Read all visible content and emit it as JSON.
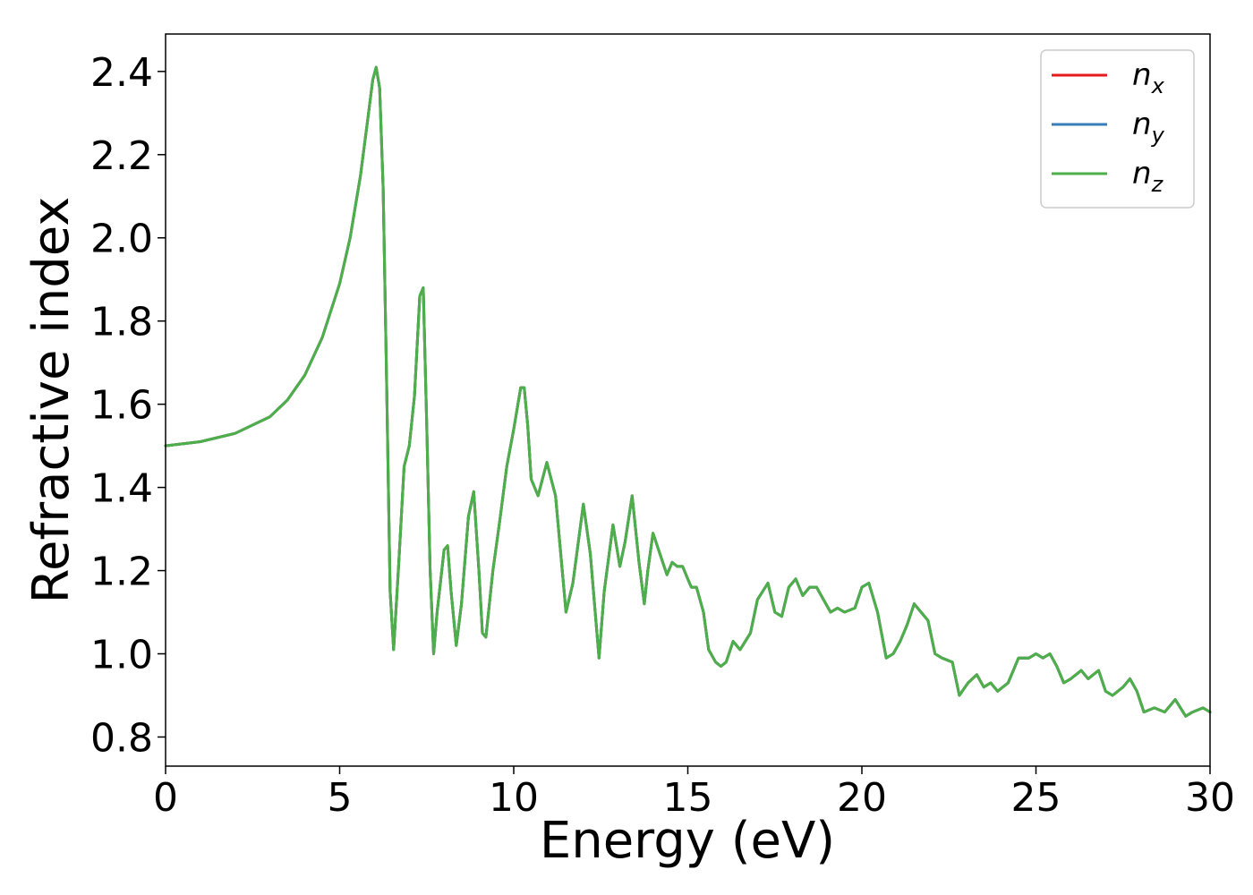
{
  "chart_data": {
    "type": "line",
    "title": "",
    "xlabel": "Energy (eV)",
    "ylabel": "Refractive index",
    "xlim": [
      0,
      30
    ],
    "ylim": [
      0.73,
      2.49
    ],
    "xticks": [
      0,
      5,
      10,
      15,
      20,
      25,
      30
    ],
    "xtick_labels": [
      "0",
      "5",
      "10",
      "15",
      "20",
      "25",
      "30"
    ],
    "yticks": [
      0.8,
      1.0,
      1.2,
      1.4,
      1.6,
      1.8,
      2.0,
      2.2,
      2.4
    ],
    "ytick_labels": [
      "0.8",
      "1.0",
      "1.2",
      "1.4",
      "1.6",
      "1.8",
      "2.0",
      "2.2",
      "2.4"
    ],
    "grid": false,
    "legend_position": "top-right",
    "x": [
      0,
      1,
      2,
      3,
      3.5,
      4,
      4.5,
      5,
      5.3,
      5.6,
      5.8,
      5.95,
      6.05,
      6.15,
      6.25,
      6.35,
      6.45,
      6.55,
      6.7,
      6.85,
      7.0,
      7.15,
      7.3,
      7.4,
      7.5,
      7.6,
      7.7,
      7.8,
      8.0,
      8.1,
      8.2,
      8.35,
      8.5,
      8.7,
      8.85,
      9.0,
      9.1,
      9.2,
      9.4,
      9.6,
      9.8,
      10.0,
      10.2,
      10.3,
      10.4,
      10.5,
      10.7,
      10.95,
      11.2,
      11.5,
      11.7,
      12.0,
      12.2,
      12.45,
      12.6,
      12.85,
      13.05,
      13.2,
      13.4,
      13.6,
      13.75,
      13.85,
      14.0,
      14.2,
      14.4,
      14.55,
      14.7,
      14.85,
      15.0,
      15.1,
      15.25,
      15.45,
      15.6,
      15.8,
      15.95,
      16.1,
      16.3,
      16.5,
      16.8,
      17.0,
      17.3,
      17.5,
      17.7,
      17.9,
      18.1,
      18.3,
      18.5,
      18.7,
      18.9,
      19.1,
      19.3,
      19.5,
      19.8,
      20.0,
      20.2,
      20.45,
      20.7,
      20.9,
      21.1,
      21.3,
      21.5,
      21.7,
      21.9,
      22.1,
      22.3,
      22.6,
      22.8,
      23.05,
      23.3,
      23.5,
      23.7,
      23.9,
      24.2,
      24.5,
      24.8,
      25.0,
      25.2,
      25.4,
      25.6,
      25.8,
      26.0,
      26.3,
      26.5,
      26.8,
      27.0,
      27.2,
      27.5,
      27.7,
      27.9,
      28.1,
      28.4,
      28.7,
      29.0,
      29.3,
      29.5,
      29.8,
      30.0
    ],
    "series": [
      {
        "name": "n_x",
        "color": "#e41a1c",
        "values": [
          1.5,
          1.51,
          1.53,
          1.57,
          1.61,
          1.67,
          1.76,
          1.89,
          2.0,
          2.15,
          2.28,
          2.38,
          2.41,
          2.36,
          2.12,
          1.65,
          1.15,
          1.01,
          1.22,
          1.45,
          1.5,
          1.62,
          1.86,
          1.88,
          1.55,
          1.2,
          1.0,
          1.1,
          1.25,
          1.26,
          1.15,
          1.02,
          1.12,
          1.33,
          1.39,
          1.2,
          1.05,
          1.04,
          1.2,
          1.32,
          1.45,
          1.54,
          1.64,
          1.64,
          1.55,
          1.42,
          1.38,
          1.46,
          1.38,
          1.1,
          1.17,
          1.36,
          1.24,
          0.99,
          1.15,
          1.31,
          1.21,
          1.27,
          1.38,
          1.22,
          1.12,
          1.2,
          1.29,
          1.24,
          1.19,
          1.22,
          1.21,
          1.21,
          1.18,
          1.16,
          1.16,
          1.1,
          1.01,
          0.98,
          0.97,
          0.98,
          1.03,
          1.01,
          1.05,
          1.13,
          1.17,
          1.1,
          1.09,
          1.16,
          1.18,
          1.14,
          1.16,
          1.16,
          1.13,
          1.1,
          1.11,
          1.1,
          1.11,
          1.16,
          1.17,
          1.1,
          0.99,
          1.0,
          1.03,
          1.07,
          1.12,
          1.1,
          1.08,
          1.0,
          0.99,
          0.98,
          0.9,
          0.93,
          0.95,
          0.92,
          0.93,
          0.91,
          0.93,
          0.99,
          0.99,
          1.0,
          0.99,
          1.0,
          0.97,
          0.93,
          0.94,
          0.96,
          0.94,
          0.96,
          0.91,
          0.9,
          0.92,
          0.94,
          0.91,
          0.86,
          0.87,
          0.86,
          0.89,
          0.85,
          0.86,
          0.87,
          0.86
        ]
      },
      {
        "name": "n_y",
        "color": "#377eb8",
        "values": [
          1.5,
          1.51,
          1.53,
          1.57,
          1.61,
          1.67,
          1.76,
          1.89,
          2.0,
          2.15,
          2.28,
          2.38,
          2.41,
          2.36,
          2.12,
          1.65,
          1.15,
          1.01,
          1.22,
          1.45,
          1.5,
          1.62,
          1.86,
          1.88,
          1.55,
          1.2,
          1.0,
          1.1,
          1.25,
          1.26,
          1.15,
          1.02,
          1.12,
          1.33,
          1.39,
          1.2,
          1.05,
          1.04,
          1.2,
          1.32,
          1.45,
          1.54,
          1.64,
          1.64,
          1.55,
          1.42,
          1.38,
          1.46,
          1.38,
          1.1,
          1.17,
          1.36,
          1.24,
          0.99,
          1.15,
          1.31,
          1.21,
          1.27,
          1.38,
          1.22,
          1.12,
          1.2,
          1.29,
          1.24,
          1.19,
          1.22,
          1.21,
          1.21,
          1.18,
          1.16,
          1.16,
          1.1,
          1.01,
          0.98,
          0.97,
          0.98,
          1.03,
          1.01,
          1.05,
          1.13,
          1.17,
          1.1,
          1.09,
          1.16,
          1.18,
          1.14,
          1.16,
          1.16,
          1.13,
          1.1,
          1.11,
          1.1,
          1.11,
          1.16,
          1.17,
          1.1,
          0.99,
          1.0,
          1.03,
          1.07,
          1.12,
          1.1,
          1.08,
          1.0,
          0.99,
          0.98,
          0.9,
          0.93,
          0.95,
          0.92,
          0.93,
          0.91,
          0.93,
          0.99,
          0.99,
          1.0,
          0.99,
          1.0,
          0.97,
          0.93,
          0.94,
          0.96,
          0.94,
          0.96,
          0.91,
          0.9,
          0.92,
          0.94,
          0.91,
          0.86,
          0.87,
          0.86,
          0.89,
          0.85,
          0.86,
          0.87,
          0.86
        ]
      },
      {
        "name": "n_z",
        "color": "#4daf4a",
        "values": [
          1.5,
          1.51,
          1.53,
          1.57,
          1.61,
          1.67,
          1.76,
          1.89,
          2.0,
          2.15,
          2.28,
          2.38,
          2.41,
          2.36,
          2.12,
          1.65,
          1.15,
          1.01,
          1.22,
          1.45,
          1.5,
          1.62,
          1.86,
          1.88,
          1.55,
          1.2,
          1.0,
          1.1,
          1.25,
          1.26,
          1.15,
          1.02,
          1.12,
          1.33,
          1.39,
          1.2,
          1.05,
          1.04,
          1.2,
          1.32,
          1.45,
          1.54,
          1.64,
          1.64,
          1.55,
          1.42,
          1.38,
          1.46,
          1.38,
          1.1,
          1.17,
          1.36,
          1.24,
          0.99,
          1.15,
          1.31,
          1.21,
          1.27,
          1.38,
          1.22,
          1.12,
          1.2,
          1.29,
          1.24,
          1.19,
          1.22,
          1.21,
          1.21,
          1.18,
          1.16,
          1.16,
          1.1,
          1.01,
          0.98,
          0.97,
          0.98,
          1.03,
          1.01,
          1.05,
          1.13,
          1.17,
          1.1,
          1.09,
          1.16,
          1.18,
          1.14,
          1.16,
          1.16,
          1.13,
          1.1,
          1.11,
          1.1,
          1.11,
          1.16,
          1.17,
          1.1,
          0.99,
          1.0,
          1.03,
          1.07,
          1.12,
          1.1,
          1.08,
          1.0,
          0.99,
          0.98,
          0.9,
          0.93,
          0.95,
          0.92,
          0.93,
          0.91,
          0.93,
          0.99,
          0.99,
          1.0,
          0.99,
          1.0,
          0.97,
          0.93,
          0.94,
          0.96,
          0.94,
          0.96,
          0.91,
          0.9,
          0.92,
          0.94,
          0.91,
          0.86,
          0.87,
          0.86,
          0.89,
          0.85,
          0.86,
          0.87,
          0.86
        ]
      }
    ],
    "legend": [
      {
        "label": "n",
        "subscript": "x",
        "color": "#e41a1c"
      },
      {
        "label": "n",
        "subscript": "y",
        "color": "#377eb8"
      },
      {
        "label": "n",
        "subscript": "z",
        "color": "#4daf4a"
      }
    ]
  }
}
